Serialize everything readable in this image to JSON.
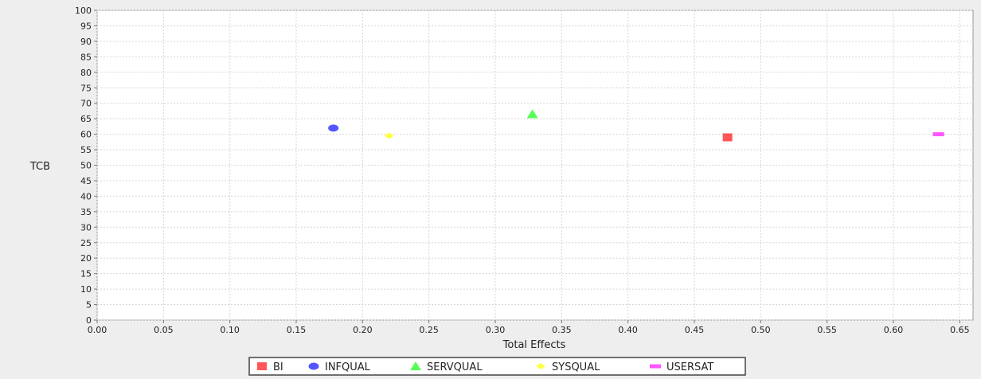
{
  "chart_data": {
    "type": "scatter",
    "title": "",
    "xlabel": "Total Effects",
    "ylabel": "TCB",
    "xlim": [
      0.0,
      0.66
    ],
    "ylim": [
      0,
      100
    ],
    "grid": true,
    "legend_position": "bottom",
    "x_ticks": [
      "0.00",
      "0.05",
      "0.10",
      "0.15",
      "0.20",
      "0.25",
      "0.30",
      "0.35",
      "0.40",
      "0.45",
      "0.50",
      "0.55",
      "0.60",
      "0.65"
    ],
    "y_ticks": [
      "0",
      "5",
      "10",
      "15",
      "20",
      "25",
      "30",
      "35",
      "40",
      "45",
      "50",
      "55",
      "60",
      "65",
      "70",
      "75",
      "80",
      "85",
      "90",
      "95",
      "100"
    ],
    "series": [
      {
        "name": "BI",
        "marker": "square",
        "color": "#ff5555",
        "points": [
          {
            "x": 0.475,
            "y": 59
          }
        ]
      },
      {
        "name": "INFQUAL",
        "marker": "circle",
        "color": "#5555ff",
        "points": [
          {
            "x": 0.178,
            "y": 62
          }
        ]
      },
      {
        "name": "SERVQUAL",
        "marker": "triangle",
        "color": "#55ff55",
        "points": [
          {
            "x": 0.328,
            "y": 66.5
          }
        ]
      },
      {
        "name": "SYSQUAL",
        "marker": "diamond",
        "color": "#ffff44",
        "points": [
          {
            "x": 0.22,
            "y": 59.5
          }
        ]
      },
      {
        "name": "USERSAT",
        "marker": "bar",
        "color": "#ff55ff",
        "points": [
          {
            "x": 0.634,
            "y": 60
          }
        ]
      }
    ]
  }
}
